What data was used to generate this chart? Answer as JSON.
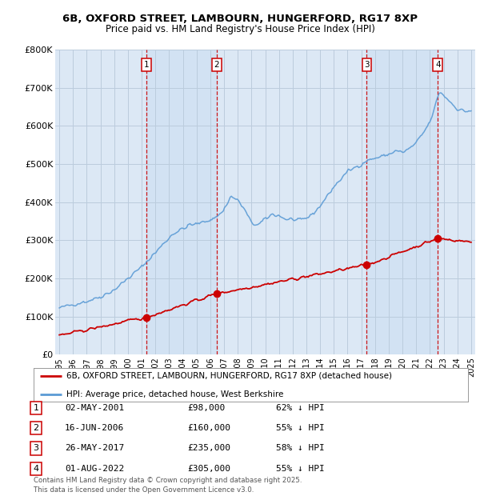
{
  "title1": "6B, OXFORD STREET, LAMBOURN, HUNGERFORD, RG17 8XP",
  "title2": "Price paid vs. HM Land Registry's House Price Index (HPI)",
  "ylim": [
    0,
    800000
  ],
  "yticks": [
    0,
    100000,
    200000,
    300000,
    400000,
    500000,
    600000,
    700000,
    800000
  ],
  "ytick_labels": [
    "£0",
    "£100K",
    "£200K",
    "£300K",
    "£400K",
    "£500K",
    "£600K",
    "£700K",
    "£800K"
  ],
  "sale_date_decimals": [
    2001.33,
    2006.46,
    2017.4,
    2022.58
  ],
  "sale_prices": [
    98000,
    160000,
    235000,
    305000
  ],
  "sale_labels": [
    "1",
    "2",
    "3",
    "4"
  ],
  "legend_line1": "6B, OXFORD STREET, LAMBOURN, HUNGERFORD, RG17 8XP (detached house)",
  "legend_line2": "HPI: Average price, detached house, West Berkshire",
  "table_rows": [
    {
      "num": "1",
      "date": "02-MAY-2001",
      "price": "£98,000",
      "hpi": "62% ↓ HPI"
    },
    {
      "num": "2",
      "date": "16-JUN-2006",
      "price": "£160,000",
      "hpi": "55% ↓ HPI"
    },
    {
      "num": "3",
      "date": "26-MAY-2017",
      "price": "£235,000",
      "hpi": "58% ↓ HPI"
    },
    {
      "num": "4",
      "date": "01-AUG-2022",
      "price": "£305,000",
      "hpi": "55% ↓ HPI"
    }
  ],
  "footer": "Contains HM Land Registry data © Crown copyright and database right 2025.\nThis data is licensed under the Open Government Licence v3.0.",
  "hpi_color": "#5b9bd5",
  "sale_color": "#cc0000",
  "vline_color": "#cc0000",
  "plot_bg_color": "#dce8f5",
  "shade_color": "#c8dcf0",
  "grid_color": "#bbccdd"
}
